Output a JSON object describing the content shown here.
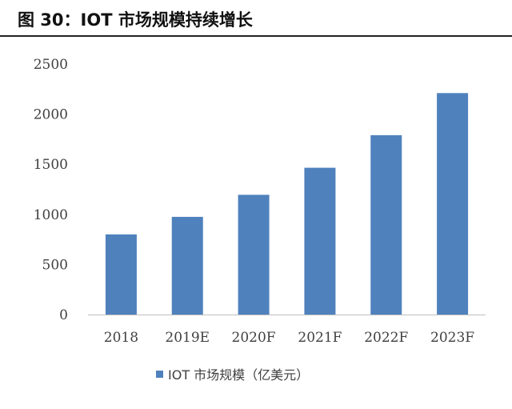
{
  "figure": {
    "title": "图 30：IOT 市场规模持续增长"
  },
  "colors": {
    "bar": "#4f81bd",
    "axis": "#bfbfbf",
    "text": "#404040"
  },
  "chart_data": {
    "type": "bar",
    "categories": [
      "2018",
      "2019E",
      "2020F",
      "2021F",
      "2022F",
      "2023F"
    ],
    "series": [
      {
        "name": "IOT 市场规模（亿美元）",
        "values": [
          800,
          975,
          1195,
          1465,
          1790,
          2210
        ]
      }
    ],
    "ylim": [
      0,
      2500
    ],
    "yticks": [
      0,
      500,
      1000,
      1500,
      2000,
      2500
    ],
    "grid": false,
    "legend": "bottom-center"
  }
}
